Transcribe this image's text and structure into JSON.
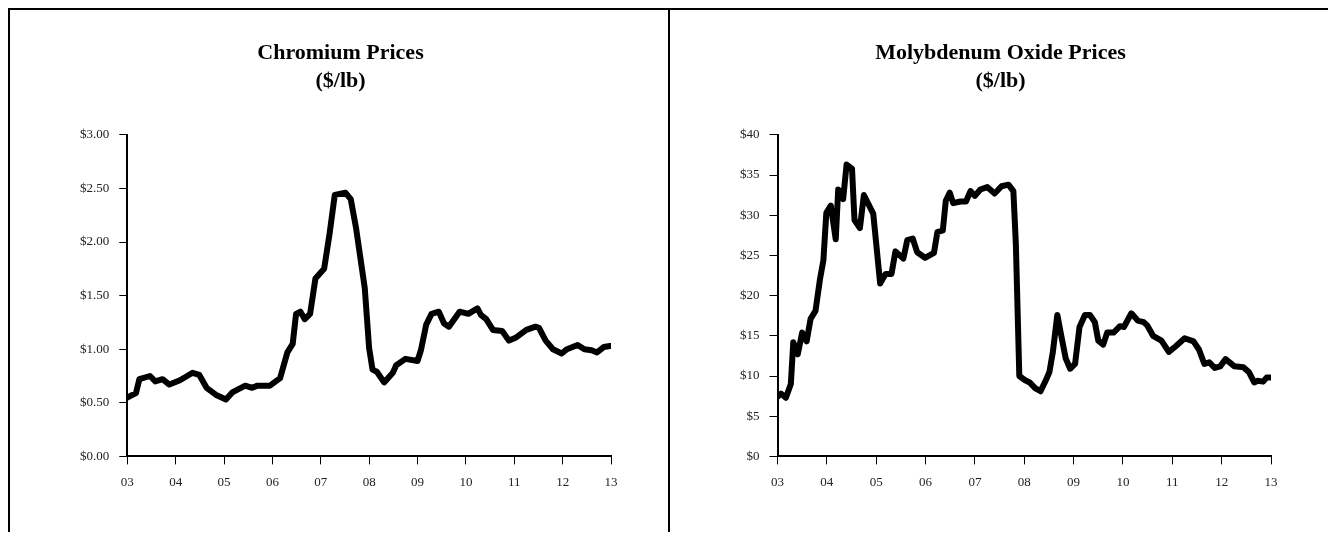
{
  "chart_data": [
    {
      "type": "line",
      "title": "Chromium Prices",
      "subtitle": "($/lb)",
      "color": "#000000",
      "grid": false,
      "legend": false,
      "marker": "none",
      "line_style": "solid",
      "xlim": [
        2003,
        2013
      ],
      "xticks": [
        {
          "value": 2003,
          "label": "03"
        },
        {
          "value": 2004,
          "label": "04"
        },
        {
          "value": 2005,
          "label": "05"
        },
        {
          "value": 2006,
          "label": "06"
        },
        {
          "value": 2007,
          "label": "07"
        },
        {
          "value": 2008,
          "label": "08"
        },
        {
          "value": 2009,
          "label": "09"
        },
        {
          "value": 2010,
          "label": "10"
        },
        {
          "value": 2011,
          "label": "11"
        },
        {
          "value": 2012,
          "label": "12"
        },
        {
          "value": 2013,
          "label": "13"
        }
      ],
      "ylim": [
        0,
        3
      ],
      "yticks": [
        {
          "value": 0,
          "label": "$0.00"
        },
        {
          "value": 0.5,
          "label": "$0.50"
        },
        {
          "value": 1,
          "label": "$1.00"
        },
        {
          "value": 1.5,
          "label": "$1.50"
        },
        {
          "value": 2,
          "label": "$2.00"
        },
        {
          "value": 2.5,
          "label": "$2.50"
        },
        {
          "value": 3,
          "label": "$3.00"
        }
      ],
      "x": [
        2003.0,
        2003.18,
        2003.25,
        2003.47,
        2003.58,
        2003.73,
        2003.87,
        2004.09,
        2004.35,
        2004.49,
        2004.64,
        2004.85,
        2005.04,
        2005.18,
        2005.44,
        2005.58,
        2005.69,
        2005.95,
        2006.16,
        2006.31,
        2006.42,
        2006.49,
        2006.58,
        2006.67,
        2006.78,
        2006.89,
        2007.07,
        2007.18,
        2007.29,
        2007.51,
        2007.62,
        2007.73,
        2007.91,
        2008.0,
        2008.07,
        2008.16,
        2008.31,
        2008.49,
        2008.56,
        2008.75,
        2009.0,
        2009.07,
        2009.18,
        2009.29,
        2009.44,
        2009.55,
        2009.65,
        2009.87,
        2010.05,
        2010.24,
        2010.31,
        2010.42,
        2010.56,
        2010.75,
        2010.89,
        2011.04,
        2011.25,
        2011.44,
        2011.51,
        2011.65,
        2011.8,
        2011.98,
        2012.09,
        2012.31,
        2012.45,
        2012.6,
        2012.71,
        2012.85,
        2012.98
      ],
      "values": [
        0.55,
        0.59,
        0.72,
        0.75,
        0.7,
        0.72,
        0.67,
        0.71,
        0.78,
        0.76,
        0.64,
        0.57,
        0.53,
        0.6,
        0.66,
        0.64,
        0.66,
        0.66,
        0.73,
        0.97,
        1.05,
        1.33,
        1.35,
        1.28,
        1.33,
        1.66,
        1.75,
        2.07,
        2.44,
        2.46,
        2.4,
        2.13,
        1.57,
        1.01,
        0.81,
        0.79,
        0.69,
        0.78,
        0.85,
        0.91,
        0.89,
        0.99,
        1.23,
        1.33,
        1.35,
        1.24,
        1.21,
        1.35,
        1.33,
        1.38,
        1.32,
        1.28,
        1.18,
        1.17,
        1.08,
        1.11,
        1.18,
        1.21,
        1.2,
        1.08,
        1.0,
        0.96,
        1.0,
        1.04,
        1.0,
        0.99,
        0.97,
        1.02,
        1.03
      ]
    },
    {
      "type": "line",
      "title": "Molybdenum Oxide Prices",
      "subtitle": "($/lb)",
      "color": "#000000",
      "grid": false,
      "legend": false,
      "marker": "none",
      "line_style": "solid",
      "xlim": [
        2003,
        2013
      ],
      "xticks": [
        {
          "value": 2003,
          "label": "03"
        },
        {
          "value": 2004,
          "label": "04"
        },
        {
          "value": 2005,
          "label": "05"
        },
        {
          "value": 2006,
          "label": "06"
        },
        {
          "value": 2007,
          "label": "07"
        },
        {
          "value": 2008,
          "label": "08"
        },
        {
          "value": 2009,
          "label": "09"
        },
        {
          "value": 2010,
          "label": "10"
        },
        {
          "value": 2011,
          "label": "11"
        },
        {
          "value": 2012,
          "label": "12"
        },
        {
          "value": 2013,
          "label": "13"
        }
      ],
      "ylim": [
        0,
        40
      ],
      "yticks": [
        {
          "value": 0,
          "label": "$0"
        },
        {
          "value": 5,
          "label": "$5"
        },
        {
          "value": 10,
          "label": "$10"
        },
        {
          "value": 15,
          "label": "$15"
        },
        {
          "value": 20,
          "label": "$20"
        },
        {
          "value": 25,
          "label": "$25"
        },
        {
          "value": 30,
          "label": "$30"
        },
        {
          "value": 35,
          "label": "$35"
        },
        {
          "value": 40,
          "label": "$40"
        }
      ],
      "x": [
        2003.0,
        2003.07,
        2003.17,
        2003.27,
        2003.32,
        2003.41,
        2003.5,
        2003.59,
        2003.67,
        2003.77,
        2003.86,
        2003.93,
        2003.99,
        2004.08,
        2004.18,
        2004.23,
        2004.33,
        2004.4,
        2004.51,
        2004.56,
        2004.67,
        2004.75,
        2004.94,
        2005.08,
        2005.19,
        2005.31,
        2005.39,
        2005.55,
        2005.63,
        2005.74,
        2005.83,
        2005.99,
        2006.17,
        2006.24,
        2006.35,
        2006.41,
        2006.49,
        2006.56,
        2006.71,
        2006.82,
        2006.91,
        2007.0,
        2007.11,
        2007.25,
        2007.4,
        2007.54,
        2007.68,
        2007.78,
        2007.83,
        2007.9,
        2008.01,
        2008.11,
        2008.22,
        2008.33,
        2008.44,
        2008.51,
        2008.58,
        2008.67,
        2008.76,
        2008.84,
        2008.93,
        2009.03,
        2009.12,
        2009.23,
        2009.33,
        2009.43,
        2009.5,
        2009.6,
        2009.68,
        2009.81,
        2009.94,
        2010.02,
        2010.17,
        2010.3,
        2010.42,
        2010.49,
        2010.61,
        2010.78,
        2010.93,
        2011.07,
        2011.25,
        2011.43,
        2011.54,
        2011.65,
        2011.75,
        2011.86,
        2011.97,
        2012.08,
        2012.26,
        2012.44,
        2012.55,
        2012.66,
        2012.73,
        2012.84,
        2012.91,
        2012.98
      ],
      "values": [
        7.4,
        7.8,
        7.3,
        9.0,
        14.2,
        12.7,
        15.4,
        14.3,
        17.1,
        18.1,
        22.0,
        24.4,
        30.3,
        31.2,
        27.0,
        33.2,
        32.0,
        36.3,
        35.8,
        29.4,
        28.4,
        32.5,
        30.2,
        21.5,
        22.7,
        22.7,
        25.5,
        24.6,
        26.9,
        27.1,
        25.4,
        24.7,
        25.3,
        27.9,
        28.1,
        31.8,
        32.8,
        31.5,
        31.7,
        31.7,
        33.0,
        32.4,
        33.2,
        33.5,
        32.7,
        33.6,
        33.8,
        33.0,
        26.4,
        10.0,
        9.5,
        9.2,
        8.5,
        8.1,
        9.5,
        10.5,
        13.0,
        17.6,
        14.7,
        12.2,
        10.9,
        11.5,
        16.1,
        17.6,
        17.6,
        16.7,
        14.4,
        13.9,
        15.4,
        15.4,
        16.2,
        16.1,
        17.8,
        16.9,
        16.7,
        16.3,
        15.0,
        14.4,
        13.0,
        13.7,
        14.7,
        14.3,
        13.3,
        11.5,
        11.7,
        11.0,
        11.2,
        12.1,
        11.2,
        11.1,
        10.5,
        9.2,
        9.4,
        9.3,
        9.8,
        9.8
      ]
    }
  ]
}
